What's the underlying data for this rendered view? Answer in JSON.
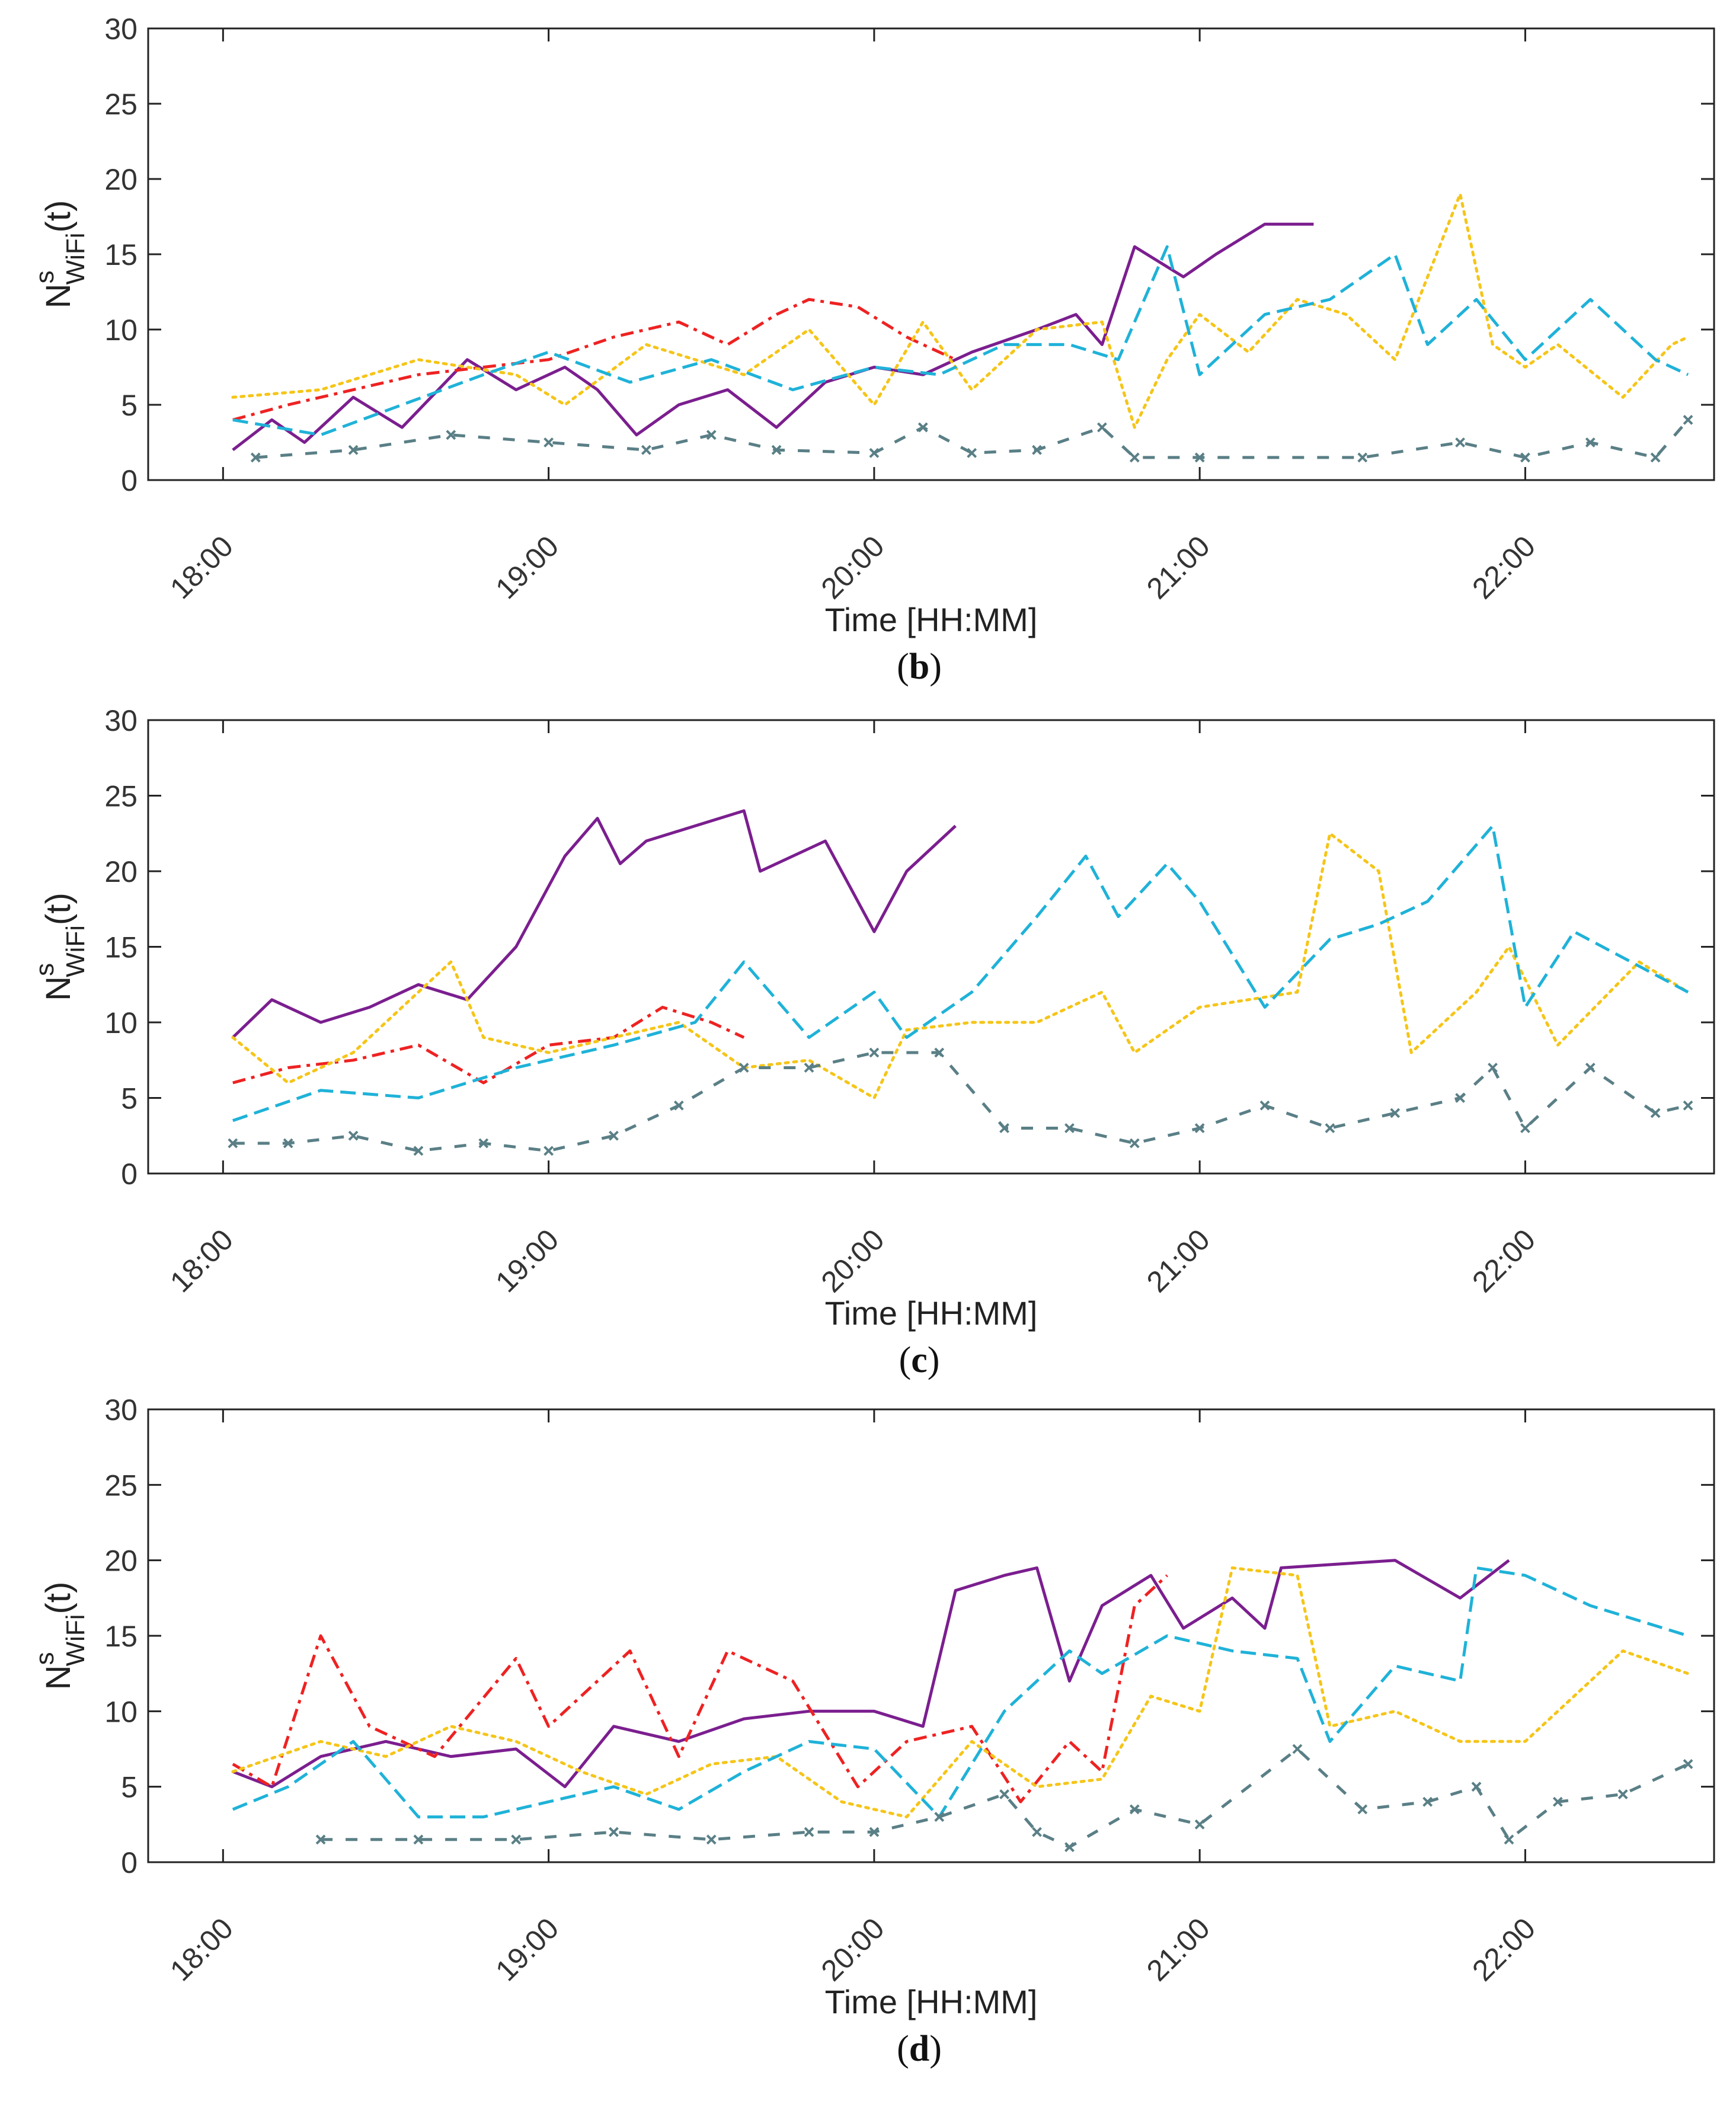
{
  "x_axis": {
    "label": "Time [HH:MM]",
    "ticks": [
      "18:00",
      "19:00",
      "20:00",
      "21:00",
      "22:00"
    ],
    "range_hours": [
      17.77,
      22.58
    ]
  },
  "y_axis": {
    "label_main": "N",
    "label_sup": "s",
    "label_sub": "WiFi",
    "label_tail": "(t)",
    "ticks": [
      "0",
      "5",
      "10",
      "15",
      "20",
      "25",
      "30"
    ],
    "range": [
      0,
      30
    ]
  },
  "colors": {
    "purple": "#7b1e8f",
    "red": "#ee2222",
    "yellow": "#f5c518",
    "cyan": "#1fb2d8",
    "gray": "#5a7f86",
    "axis": "#222222"
  },
  "chart_data": [
    {
      "type": "line",
      "caption_letter": "b",
      "series": [
        {
          "color": "purple",
          "style": "solid",
          "x": [
            18.03,
            18.15,
            18.25,
            18.4,
            18.55,
            18.75,
            18.9,
            19.05,
            19.15,
            19.27,
            19.4,
            19.55,
            19.7,
            19.85,
            20.0,
            20.15,
            20.3,
            20.5,
            20.62,
            20.7,
            20.8,
            20.95,
            21.05,
            21.2,
            21.35
          ],
          "y": [
            2,
            4,
            2.5,
            5.5,
            3.5,
            8,
            6,
            7.5,
            6,
            3,
            5,
            6,
            3.5,
            6.5,
            7.5,
            7,
            8.5,
            10,
            11,
            9,
            15.5,
            13.5,
            15,
            17,
            17
          ]
        },
        {
          "color": "red",
          "style": "dashdot",
          "x": [
            18.03,
            18.2,
            18.4,
            18.6,
            18.8,
            19.0,
            19.2,
            19.4,
            19.55,
            19.7,
            19.8,
            19.95,
            20.1,
            20.25
          ],
          "y": [
            4,
            5,
            6,
            7,
            7.5,
            8,
            9.5,
            10.5,
            9,
            11,
            12,
            11.5,
            9.5,
            8
          ]
        },
        {
          "color": "yellow",
          "style": "dotted",
          "x": [
            18.03,
            18.3,
            18.6,
            18.9,
            19.05,
            19.3,
            19.6,
            19.8,
            20.0,
            20.15,
            20.3,
            20.5,
            20.7,
            20.8,
            20.9,
            21.0,
            21.15,
            21.3,
            21.45,
            21.6,
            21.8,
            21.9,
            22.0,
            22.1,
            22.3,
            22.45,
            22.5
          ],
          "y": [
            5.5,
            6,
            8,
            7,
            5,
            9,
            7,
            10,
            5,
            10.5,
            6,
            10,
            10.5,
            3.5,
            8,
            11,
            8.5,
            12,
            11,
            8,
            19,
            9,
            7.5,
            9,
            5.5,
            9,
            9.5
          ]
        },
        {
          "color": "cyan",
          "style": "dashed",
          "x": [
            18.03,
            18.3,
            18.55,
            18.8,
            19.0,
            19.25,
            19.5,
            19.75,
            20.0,
            20.2,
            20.4,
            20.6,
            20.75,
            20.9,
            21.0,
            21.2,
            21.4,
            21.6,
            21.7,
            21.85,
            22.0,
            22.2,
            22.4,
            22.5
          ],
          "y": [
            4,
            3,
            5,
            7,
            8.5,
            6.5,
            8,
            6,
            7.5,
            7,
            9,
            9,
            8,
            15.5,
            7,
            11,
            12,
            15,
            9,
            12,
            8,
            12,
            8,
            7
          ]
        },
        {
          "color": "gray",
          "style": "dashed-x",
          "x": [
            18.1,
            18.4,
            18.7,
            19.0,
            19.3,
            19.5,
            19.7,
            20.0,
            20.15,
            20.3,
            20.5,
            20.7,
            20.8,
            21.0,
            21.5,
            21.8,
            22.0,
            22.2,
            22.4,
            22.5
          ],
          "y": [
            1.5,
            2,
            3,
            2.5,
            2,
            3,
            2,
            1.8,
            3.5,
            1.8,
            2,
            3.5,
            1.5,
            1.5,
            1.5,
            2.5,
            1.5,
            2.5,
            1.5,
            4
          ]
        }
      ]
    },
    {
      "type": "line",
      "caption_letter": "c",
      "series": [
        {
          "color": "purple",
          "style": "solid",
          "x": [
            18.03,
            18.15,
            18.3,
            18.45,
            18.6,
            18.75,
            18.9,
            19.05,
            19.15,
            19.22,
            19.3,
            19.6,
            19.65,
            19.85,
            20.0,
            20.1,
            20.25
          ],
          "y": [
            9,
            11.5,
            10,
            11,
            12.5,
            11.5,
            15,
            21,
            23.5,
            20.5,
            22,
            24,
            20,
            22,
            16,
            20,
            23
          ]
        },
        {
          "color": "red",
          "style": "dashdot",
          "x": [
            18.03,
            18.2,
            18.4,
            18.6,
            18.8,
            19.0,
            19.2,
            19.35,
            19.5,
            19.6
          ],
          "y": [
            6,
            7,
            7.5,
            8.5,
            6,
            8.5,
            9,
            11,
            10,
            9
          ]
        },
        {
          "color": "yellow",
          "style": "dotted",
          "x": [
            18.03,
            18.2,
            18.4,
            18.55,
            18.7,
            18.8,
            19.0,
            19.2,
            19.4,
            19.6,
            19.8,
            20.0,
            20.1,
            20.3,
            20.5,
            20.7,
            20.8,
            21.0,
            21.3,
            21.4,
            21.55,
            21.65,
            21.85,
            21.95,
            22.1,
            22.35,
            22.5
          ],
          "y": [
            9,
            6,
            8,
            11,
            14,
            9,
            8,
            9,
            10,
            7,
            7.5,
            5,
            9.5,
            10,
            10,
            12,
            8,
            11,
            12,
            22.5,
            20,
            8,
            12,
            15,
            8.5,
            14,
            12
          ]
        },
        {
          "color": "cyan",
          "style": "dashed",
          "x": [
            18.03,
            18.3,
            18.6,
            18.9,
            19.2,
            19.45,
            19.6,
            19.8,
            20.0,
            20.1,
            20.3,
            20.5,
            20.65,
            20.75,
            20.9,
            21.0,
            21.2,
            21.4,
            21.55,
            21.7,
            21.9,
            22.0,
            22.15,
            22.5
          ],
          "y": [
            3.5,
            5.5,
            5,
            7,
            8.5,
            10,
            14,
            9,
            12,
            9,
            12,
            17,
            21,
            17,
            20.5,
            18,
            11,
            15.5,
            16.5,
            18,
            23,
            11,
            16,
            12
          ]
        },
        {
          "color": "gray",
          "style": "dashed-x",
          "x": [
            18.03,
            18.2,
            18.4,
            18.6,
            18.8,
            19.0,
            19.2,
            19.4,
            19.6,
            19.8,
            20.0,
            20.2,
            20.4,
            20.6,
            20.8,
            21.0,
            21.2,
            21.4,
            21.6,
            21.8,
            21.9,
            22.0,
            22.2,
            22.4,
            22.5
          ],
          "y": [
            2,
            2,
            2.5,
            1.5,
            2,
            1.5,
            2.5,
            4.5,
            7,
            7,
            8,
            8,
            3,
            3,
            2,
            3,
            4.5,
            3,
            4,
            5,
            7,
            3,
            7,
            4,
            4.5
          ]
        }
      ]
    },
    {
      "type": "line",
      "caption_letter": "d",
      "series": [
        {
          "color": "purple",
          "style": "solid",
          "x": [
            18.03,
            18.15,
            18.3,
            18.5,
            18.7,
            18.9,
            19.05,
            19.2,
            19.4,
            19.6,
            19.8,
            20.0,
            20.15,
            20.25,
            20.4,
            20.5,
            20.6,
            20.7,
            20.85,
            20.95,
            21.1,
            21.2,
            21.25,
            21.6,
            21.8,
            21.95
          ],
          "y": [
            6,
            5,
            7,
            8,
            7,
            7.5,
            5,
            9,
            8,
            9.5,
            10,
            10,
            9,
            18,
            19,
            19.5,
            12,
            17,
            19,
            15.5,
            17.5,
            15.5,
            19.5,
            20,
            17.5,
            20
          ]
        },
        {
          "color": "red",
          "style": "dashdot",
          "x": [
            18.03,
            18.15,
            18.3,
            18.45,
            18.65,
            18.9,
            19.0,
            19.25,
            19.4,
            19.55,
            19.75,
            19.95,
            20.1,
            20.3,
            20.45,
            20.6,
            20.7,
            20.8,
            20.9
          ],
          "y": [
            6.5,
            5,
            15,
            9,
            7,
            13.5,
            9,
            14,
            7,
            14,
            12,
            5,
            8,
            9,
            4,
            8,
            6,
            17,
            19
          ]
        },
        {
          "color": "yellow",
          "style": "dotted",
          "x": [
            18.03,
            18.3,
            18.5,
            18.7,
            18.9,
            19.1,
            19.3,
            19.5,
            19.7,
            19.9,
            20.1,
            20.3,
            20.5,
            20.7,
            20.85,
            21.0,
            21.1,
            21.3,
            21.4,
            21.6,
            21.8,
            22.0,
            22.3,
            22.5
          ],
          "y": [
            6,
            8,
            7,
            9,
            8,
            6,
            4.5,
            6.5,
            7,
            4,
            3,
            8,
            5,
            5.5,
            11,
            10,
            19.5,
            19,
            9,
            10,
            8,
            8,
            14,
            12.5
          ]
        },
        {
          "color": "cyan",
          "style": "dashed",
          "x": [
            18.03,
            18.2,
            18.4,
            18.6,
            18.8,
            19.0,
            19.2,
            19.4,
            19.6,
            19.8,
            20.0,
            20.2,
            20.4,
            20.6,
            20.7,
            20.9,
            21.1,
            21.3,
            21.4,
            21.6,
            21.8,
            21.85,
            22.0,
            22.2,
            22.5
          ],
          "y": [
            3.5,
            5,
            8,
            3,
            3,
            4,
            5,
            3.5,
            6,
            8,
            7.5,
            3,
            10,
            14,
            12.5,
            15,
            14,
            13.5,
            8,
            13,
            12,
            19.5,
            19,
            17,
            15
          ]
        },
        {
          "color": "gray",
          "style": "dashed-x",
          "x": [
            18.3,
            18.6,
            18.9,
            19.2,
            19.5,
            19.8,
            20.0,
            20.2,
            20.4,
            20.5,
            20.6,
            20.8,
            21.0,
            21.3,
            21.5,
            21.7,
            21.85,
            21.95,
            22.1,
            22.3,
            22.5
          ],
          "y": [
            1.5,
            1.5,
            1.5,
            2,
            1.5,
            2,
            2,
            3,
            4.5,
            2,
            1,
            3.5,
            2.5,
            7.5,
            3.5,
            4,
            5,
            1.5,
            4,
            4.5,
            6.5
          ]
        }
      ]
    }
  ]
}
